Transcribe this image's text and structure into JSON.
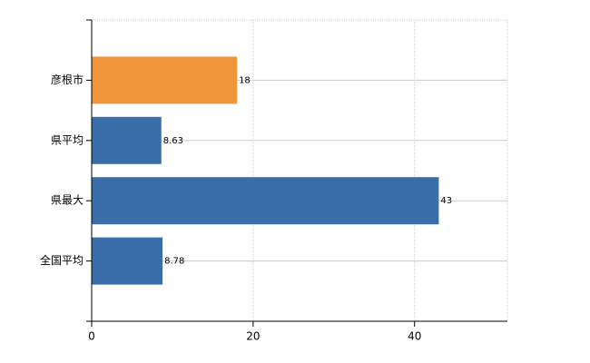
{
  "chart_data": {
    "type": "hbar",
    "categories": [
      "彦根市",
      "県平均",
      "県最大",
      "全国平均"
    ],
    "values": [
      18,
      8.63,
      43,
      8.78
    ],
    "colors": [
      "#f0953a",
      "#3a6ea8",
      "#3a6ea8",
      "#3a6ea8"
    ],
    "xlim": [
      0,
      51.5
    ],
    "xticks": [
      0,
      20,
      40
    ],
    "grid": true
  }
}
